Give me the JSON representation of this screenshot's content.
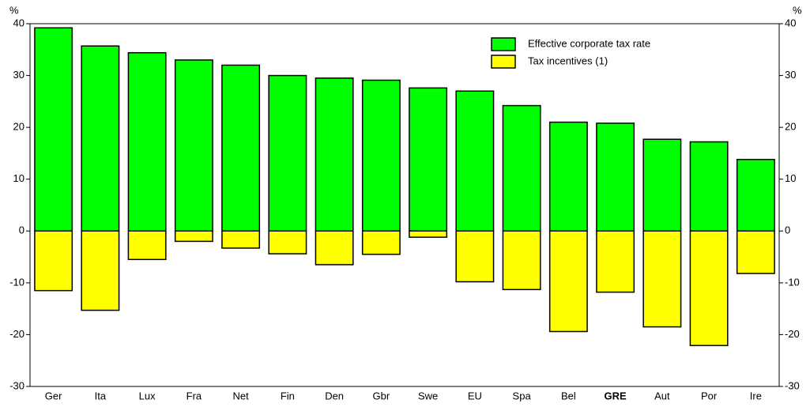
{
  "chart_data": {
    "type": "bar",
    "ylabel": "%",
    "y2label": "%",
    "categories": [
      "Ger",
      "Ita",
      "Lux",
      "Fra",
      "Net",
      "Fin",
      "Den",
      "Gbr",
      "Swe",
      "EU",
      "Spa",
      "Bel",
      "GRE",
      "Aut",
      "Por",
      "Ire"
    ],
    "highlight_category": "GRE",
    "series": [
      {
        "name": "Effective corporate tax rate",
        "color": "#00ff00",
        "values": [
          39.2,
          35.7,
          34.4,
          33.0,
          32.0,
          30.0,
          29.5,
          29.1,
          27.6,
          27.0,
          24.2,
          21.0,
          20.8,
          17.7,
          17.2,
          13.8
        ]
      },
      {
        "name": "Tax incentives (1)",
        "color": "#ffff00",
        "values": [
          -11.5,
          -15.3,
          -5.5,
          -2.0,
          -3.3,
          -4.4,
          -6.5,
          -4.5,
          -1.2,
          -9.8,
          -11.3,
          -19.4,
          -11.8,
          -18.5,
          -22.1,
          -8.2
        ]
      }
    ],
    "ylim": [
      -30,
      40
    ],
    "yticks": [
      -30,
      -20,
      -10,
      0,
      10,
      20,
      30,
      40
    ],
    "y2lim": [
      -30,
      40
    ],
    "y2ticks": [
      -30,
      -20,
      -10,
      0,
      10,
      20,
      30,
      40
    ],
    "legend": "upper right"
  }
}
